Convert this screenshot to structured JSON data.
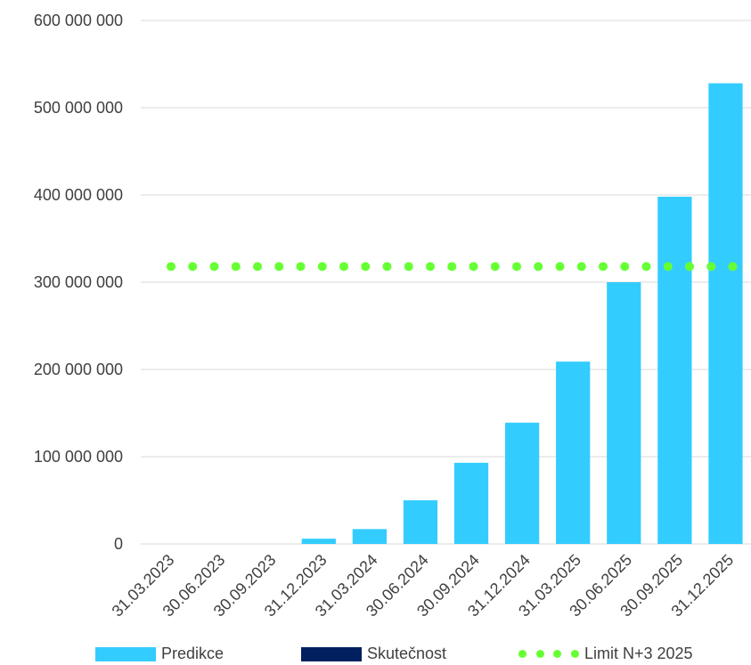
{
  "chart_data": {
    "type": "bar",
    "title": "",
    "xlabel": "",
    "ylabel": "",
    "ylim": [
      0,
      600000000
    ],
    "yticks": [
      0,
      100000000,
      200000000,
      300000000,
      400000000,
      500000000,
      600000000
    ],
    "ytick_labels": [
      "0",
      "100 000 000",
      "200 000 000",
      "300 000 000",
      "400 000 000",
      "500 000 000",
      "600 000 000"
    ],
    "grid": true,
    "legend_position": "bottom",
    "categories": [
      "31.03.2023",
      "30.06.2023",
      "30.09.2023",
      "31.12.2023",
      "31.03.2024",
      "30.06.2024",
      "30.09.2024",
      "31.12.2024",
      "31.03.2025",
      "30.06.2025",
      "30.09.2025",
      "31.12.2025"
    ],
    "series": [
      {
        "name": "Predikce",
        "type": "bar",
        "color": "#33CCFF",
        "values": [
          0,
          0,
          0,
          6000000,
          17000000,
          50000000,
          93000000,
          139000000,
          209000000,
          300000000,
          398000000,
          528000000
        ]
      },
      {
        "name": "Skutečnost",
        "type": "bar",
        "color": "#002060",
        "values": [
          0,
          0,
          0,
          0,
          0,
          0,
          0,
          0,
          0,
          0,
          0,
          0
        ]
      },
      {
        "name": "Limit N+3 2025",
        "type": "line",
        "style": "dotted",
        "color": "#66FF33",
        "values": [
          318000000,
          318000000,
          318000000,
          318000000,
          318000000,
          318000000,
          318000000,
          318000000,
          318000000,
          318000000,
          318000000,
          318000000
        ]
      }
    ]
  }
}
